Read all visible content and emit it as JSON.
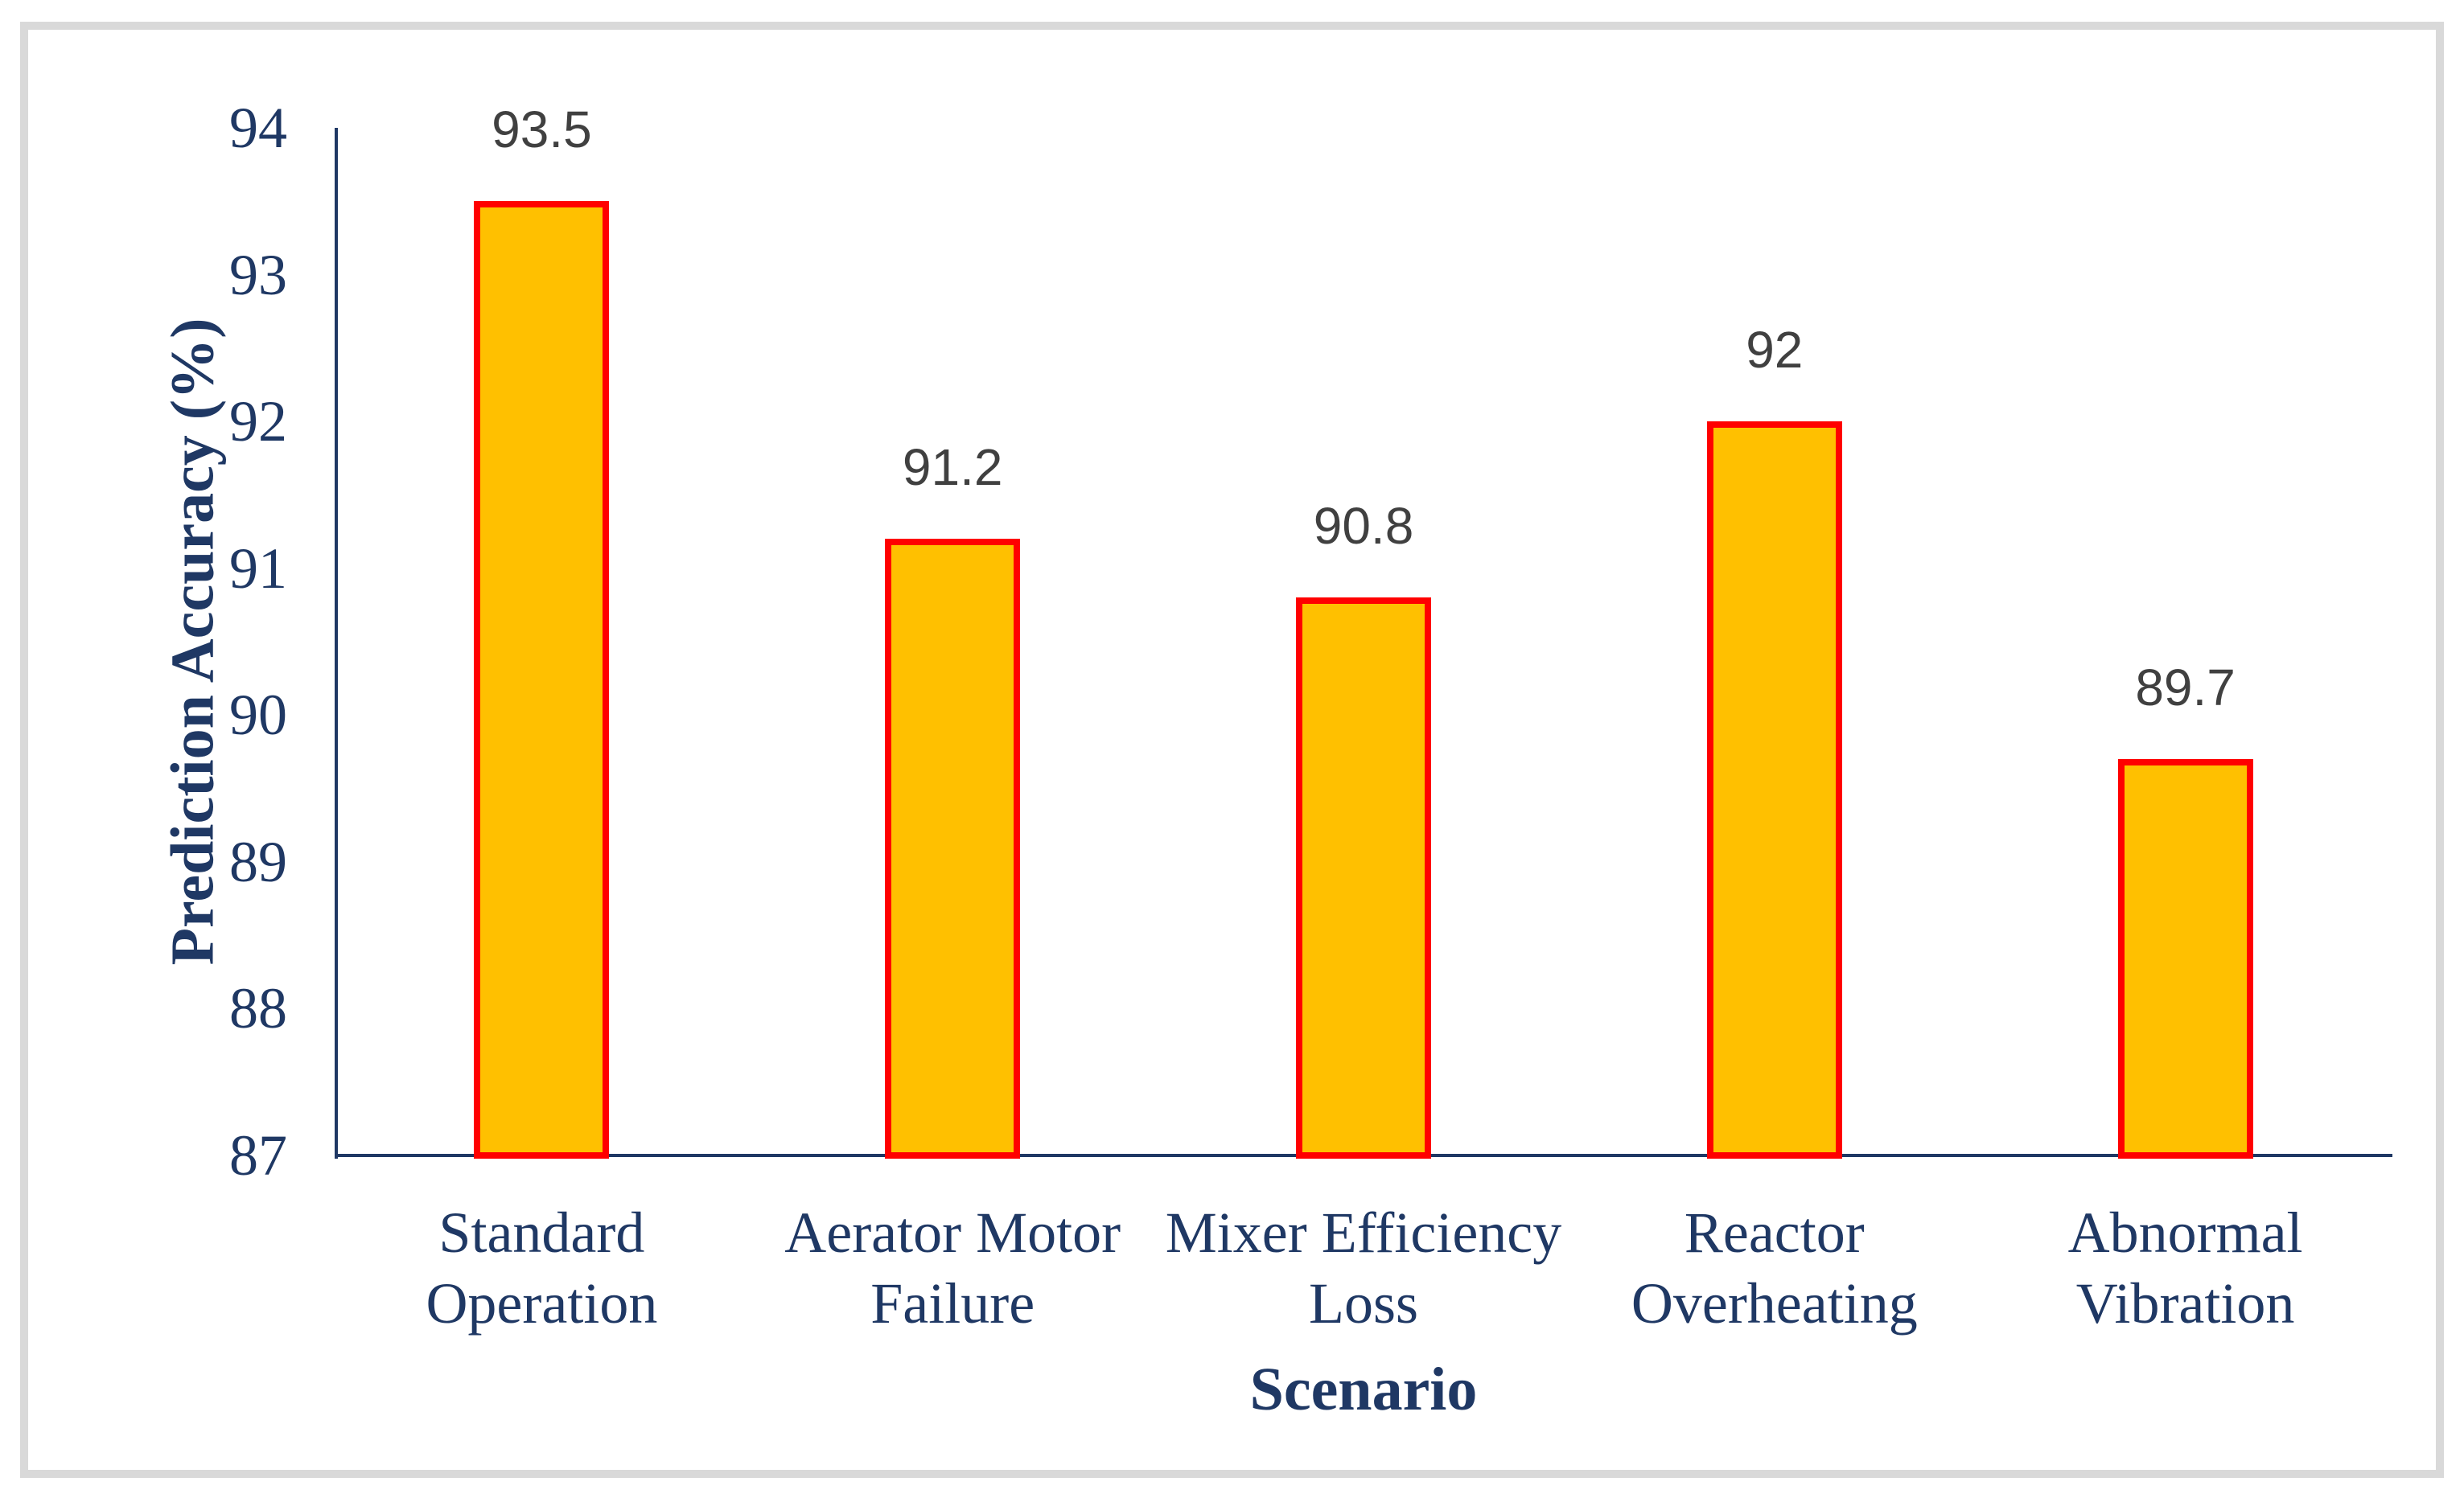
{
  "chart_data": {
    "type": "bar",
    "title": "",
    "xlabel": "Scenario",
    "ylabel": "Prediction Accuracy (%)",
    "categories": [
      "Standard Operation",
      "Aerator Motor Failure",
      "Mixer Efficiency Loss",
      "Reactor Overheating",
      "Abnormal Vibration"
    ],
    "values": [
      93.5,
      91.2,
      90.8,
      92,
      89.7
    ],
    "data_labels": [
      "93.5",
      "91.2",
      "90.8",
      "92",
      "89.7"
    ],
    "ylim": [
      87,
      94
    ],
    "ytick_step": 1,
    "yticks": [
      "87",
      "88",
      "89",
      "90",
      "91",
      "92",
      "93",
      "94"
    ],
    "grid": false,
    "legend": "none",
    "colors": {
      "bar_fill": "#FFC000",
      "bar_border": "#FF0000",
      "axis_line": "#1F3864",
      "axis_text": "#1F3864",
      "value_label": "#404040",
      "frame_border": "#D9D9D9",
      "background": "#FFFFFF"
    }
  }
}
